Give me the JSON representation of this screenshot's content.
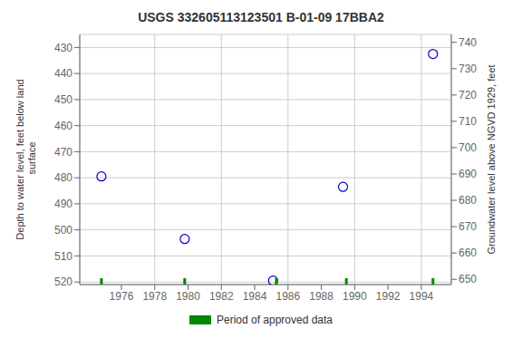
{
  "chart_data": {
    "type": "scatter",
    "title": "USGS 332605113123501 B-01-09 17BBA2",
    "y_label": "Depth to water level, feet below land\n surface",
    "y2_label": "Groundwater level above NGVD 1929, feet",
    "series": [
      {
        "color": "#0000cc",
        "marker": "circle",
        "x": [
          1974.8,
          1979.8,
          1985.1,
          1989.3,
          1994.7
        ],
        "values": [
          479.5,
          503.5,
          519.5,
          483.5,
          432.5
        ]
      },
      {
        "name": "Period of approved data",
        "type": "tick",
        "color": "#008800",
        "x": [
          1974.8,
          1979.8,
          1985.3,
          1989.5,
          1994.7
        ]
      }
    ],
    "xlim": [
      1973.5,
      1995.8
    ],
    "xticks": [
      1976,
      1978,
      1980,
      1982,
      1984,
      1986,
      1988,
      1990,
      1992,
      1994
    ],
    "ylim": [
      521,
      425
    ],
    "yticks": [
      430,
      440,
      450,
      460,
      470,
      480,
      490,
      500,
      510,
      520
    ],
    "y2lim": [
      648,
      743
    ],
    "y2ticks": [
      650,
      660,
      670,
      680,
      690,
      700,
      710,
      720,
      730,
      740
    ],
    "grid": true,
    "legend": "bottom"
  }
}
